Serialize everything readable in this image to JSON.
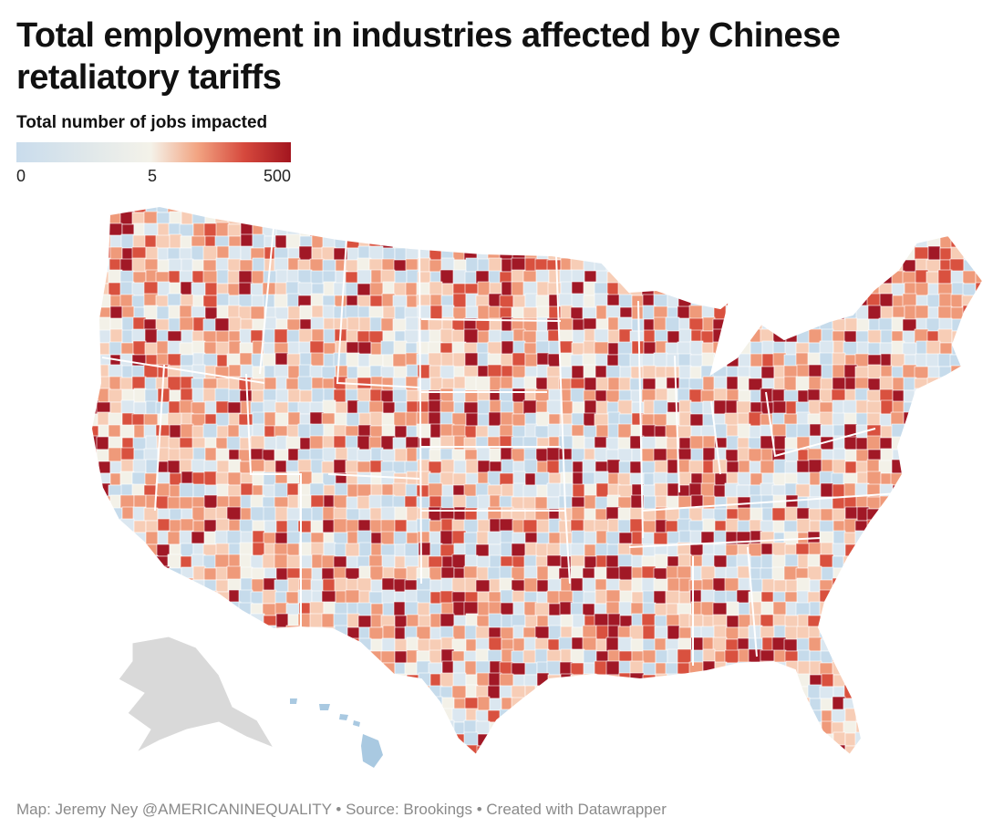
{
  "header": {
    "title": "Total employment in industries affected by Chinese retaliatory tariffs"
  },
  "legend": {
    "title": "Total number of jobs impacted",
    "ticks": [
      "0",
      "5",
      "500"
    ],
    "colors": [
      "#c9dcec",
      "#f4f2e9",
      "#f2a482",
      "#d6493d",
      "#a3151f"
    ]
  },
  "map": {
    "region": "United States (counties)",
    "colors": {
      "none": "#c6dbeb",
      "very_low": "#dbe7f0",
      "low": "#f3f1e8",
      "light": "#f7cdb6",
      "medium": "#ef9a7a",
      "high": "#d9513f",
      "very_high": "#a11826",
      "no_data": "#d9d9d9"
    }
  },
  "footer": {
    "credit": "Map: Jeremy Ney @AMERICANINEQUALITY • Source: Brookings • Created with Datawrapper"
  }
}
